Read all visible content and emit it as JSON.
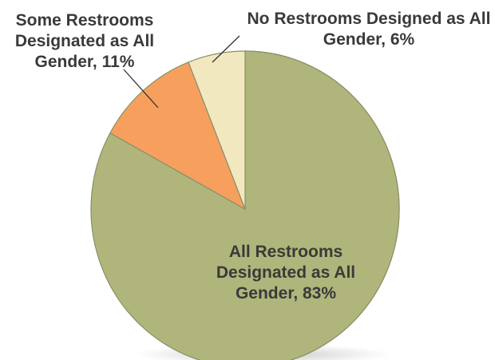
{
  "chart_data": {
    "type": "pie",
    "title": "",
    "slices": [
      {
        "label_lines": [
          "All Restrooms",
          "Designated as All",
          "Gender, 83%"
        ],
        "value": 83,
        "color": "#b0b57b"
      },
      {
        "label_lines": [
          "Some Restrooms",
          "Designated as All",
          "Gender, 11%"
        ],
        "value": 11,
        "color": "#f7a05e"
      },
      {
        "label_lines": [
          "No Restrooms Designed as All",
          "Gender, 6%"
        ],
        "value": 6,
        "color": "#f2e8bf"
      }
    ],
    "start_angle": "12 o'clock",
    "direction": "clockwise",
    "style": "3d-tilted",
    "side_color": "#cfd19b",
    "edge_color": "#8c8e66"
  }
}
